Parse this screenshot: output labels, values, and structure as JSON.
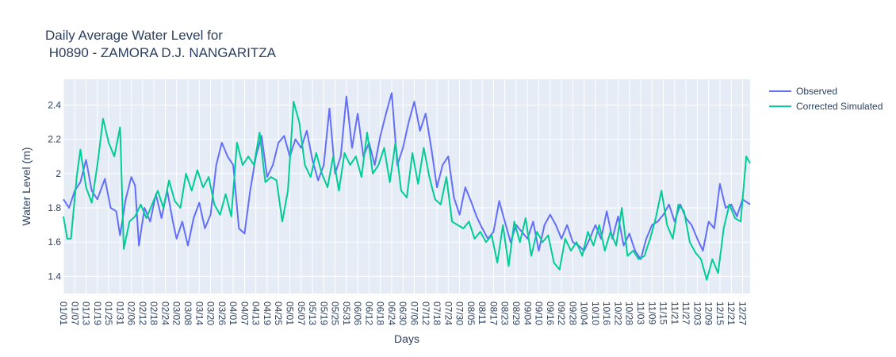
{
  "chart_data": {
    "type": "line",
    "title_line1": "Daily Average Water Level for",
    "title_line2": " H0890 - ZAMORA D.J. NANGARITZA",
    "xlabel": "Days",
    "ylabel": "Water Level (m)",
    "ylim": [
      1.3,
      2.55
    ],
    "yticks": [
      "1.4",
      "1.6",
      "1.8",
      "2",
      "2.2",
      "2.4"
    ],
    "x_start": "01/01",
    "x_end": "12/31",
    "xticks": [
      "01/01",
      "01/07",
      "01/13",
      "01/19",
      "01/25",
      "01/31",
      "02/06",
      "02/12",
      "02/18",
      "02/24",
      "03/02",
      "03/08",
      "03/14",
      "03/20",
      "03/26",
      "04/01",
      "04/07",
      "04/13",
      "04/19",
      "04/25",
      "05/01",
      "05/07",
      "05/13",
      "05/19",
      "05/25",
      "05/31",
      "06/06",
      "06/12",
      "06/18",
      "06/24",
      "06/30",
      "07/06",
      "07/12",
      "07/18",
      "07/24",
      "07/30",
      "08/05",
      "08/11",
      "08/17",
      "08/23",
      "08/29",
      "09/04",
      "09/10",
      "09/16",
      "09/22",
      "09/28",
      "10/04",
      "10/10",
      "10/16",
      "10/22",
      "10/28",
      "11/03",
      "11/09",
      "11/15",
      "11/21",
      "11/27",
      "12/03",
      "12/09",
      "12/15",
      "12/21",
      "12/27"
    ],
    "grid": true,
    "legend_position": "right",
    "series": [
      {
        "name": "Observed",
        "color": "#636efa",
        "points": [
          [
            "01/01",
            1.85
          ],
          [
            "01/04",
            1.8
          ],
          [
            "01/07",
            1.9
          ],
          [
            "01/10",
            1.95
          ],
          [
            "01/13",
            2.08
          ],
          [
            "01/16",
            1.9
          ],
          [
            "01/19",
            1.85
          ],
          [
            "01/23",
            1.97
          ],
          [
            "01/26",
            1.8
          ],
          [
            "01/29",
            1.78
          ],
          [
            "01/31",
            1.64
          ],
          [
            "02/03",
            1.85
          ],
          [
            "02/06",
            1.98
          ],
          [
            "02/08",
            1.93
          ],
          [
            "02/10",
            1.58
          ],
          [
            "02/13",
            1.8
          ],
          [
            "02/16",
            1.72
          ],
          [
            "02/19",
            1.88
          ],
          [
            "02/22",
            1.74
          ],
          [
            "02/25",
            1.9
          ],
          [
            "02/28",
            1.72
          ],
          [
            "03/02",
            1.62
          ],
          [
            "03/05",
            1.72
          ],
          [
            "03/08",
            1.58
          ],
          [
            "03/11",
            1.74
          ],
          [
            "03/14",
            1.83
          ],
          [
            "03/17",
            1.68
          ],
          [
            "03/20",
            1.76
          ],
          [
            "03/23",
            2.05
          ],
          [
            "03/26",
            2.18
          ],
          [
            "03/29",
            2.1
          ],
          [
            "04/01",
            2.05
          ],
          [
            "04/04",
            1.68
          ],
          [
            "04/07",
            1.65
          ],
          [
            "04/10",
            1.9
          ],
          [
            "04/13",
            2.1
          ],
          [
            "04/16",
            2.22
          ],
          [
            "04/19",
            1.98
          ],
          [
            "04/22",
            2.05
          ],
          [
            "04/25",
            2.18
          ],
          [
            "04/28",
            2.22
          ],
          [
            "05/01",
            2.1
          ],
          [
            "05/04",
            2.2
          ],
          [
            "05/07",
            2.15
          ],
          [
            "05/10",
            2.25
          ],
          [
            "05/13",
            2.08
          ],
          [
            "05/16",
            1.96
          ],
          [
            "05/19",
            2.05
          ],
          [
            "05/22",
            2.38
          ],
          [
            "05/25",
            2.0
          ],
          [
            "05/28",
            2.1
          ],
          [
            "05/31",
            2.45
          ],
          [
            "06/03",
            2.15
          ],
          [
            "06/06",
            2.35
          ],
          [
            "06/09",
            2.1
          ],
          [
            "06/12",
            2.18
          ],
          [
            "06/15",
            2.05
          ],
          [
            "06/18",
            2.22
          ],
          [
            "06/21",
            2.35
          ],
          [
            "06/24",
            2.47
          ],
          [
            "06/27",
            2.05
          ],
          [
            "06/30",
            2.15
          ],
          [
            "07/03",
            2.3
          ],
          [
            "07/06",
            2.42
          ],
          [
            "07/09",
            2.25
          ],
          [
            "07/12",
            2.35
          ],
          [
            "07/15",
            2.15
          ],
          [
            "07/18",
            1.92
          ],
          [
            "07/21",
            2.05
          ],
          [
            "07/24",
            2.1
          ],
          [
            "07/27",
            1.86
          ],
          [
            "07/30",
            1.76
          ],
          [
            "08/02",
            1.92
          ],
          [
            "08/05",
            1.84
          ],
          [
            "08/08",
            1.75
          ],
          [
            "08/11",
            1.68
          ],
          [
            "08/14",
            1.62
          ],
          [
            "08/17",
            1.66
          ],
          [
            "08/20",
            1.84
          ],
          [
            "08/23",
            1.72
          ],
          [
            "08/26",
            1.6
          ],
          [
            "08/29",
            1.7
          ],
          [
            "09/01",
            1.66
          ],
          [
            "09/04",
            1.62
          ],
          [
            "09/07",
            1.72
          ],
          [
            "09/10",
            1.55
          ],
          [
            "09/13",
            1.7
          ],
          [
            "09/16",
            1.76
          ],
          [
            "09/19",
            1.7
          ],
          [
            "09/22",
            1.62
          ],
          [
            "09/25",
            1.7
          ],
          [
            "09/28",
            1.6
          ],
          [
            "10/01",
            1.58
          ],
          [
            "10/04",
            1.55
          ],
          [
            "10/07",
            1.62
          ],
          [
            "10/10",
            1.7
          ],
          [
            "10/13",
            1.62
          ],
          [
            "10/16",
            1.78
          ],
          [
            "10/19",
            1.62
          ],
          [
            "10/22",
            1.75
          ],
          [
            "10/25",
            1.58
          ],
          [
            "10/28",
            1.65
          ],
          [
            "10/31",
            1.55
          ],
          [
            "11/03",
            1.5
          ],
          [
            "11/06",
            1.62
          ],
          [
            "11/09",
            1.7
          ],
          [
            "11/12",
            1.72
          ],
          [
            "11/15",
            1.76
          ],
          [
            "11/18",
            1.82
          ],
          [
            "11/21",
            1.72
          ],
          [
            "11/24",
            1.82
          ],
          [
            "11/27",
            1.74
          ],
          [
            "11/30",
            1.7
          ],
          [
            "12/03",
            1.62
          ],
          [
            "12/06",
            1.55
          ],
          [
            "12/09",
            1.72
          ],
          [
            "12/12",
            1.68
          ],
          [
            "12/15",
            1.94
          ],
          [
            "12/18",
            1.8
          ],
          [
            "12/21",
            1.82
          ],
          [
            "12/24",
            1.75
          ],
          [
            "12/27",
            1.85
          ],
          [
            "12/31",
            1.82
          ]
        ]
      },
      {
        "name": "Corrected Simulated",
        "color": "#00cc96",
        "points": [
          [
            "01/01",
            1.75
          ],
          [
            "01/03",
            1.62
          ],
          [
            "01/05",
            1.62
          ],
          [
            "01/08",
            1.98
          ],
          [
            "01/10",
            2.14
          ],
          [
            "01/13",
            1.92
          ],
          [
            "01/16",
            1.83
          ],
          [
            "01/19",
            2.05
          ],
          [
            "01/22",
            2.32
          ],
          [
            "01/25",
            2.18
          ],
          [
            "01/28",
            2.1
          ],
          [
            "01/31",
            2.27
          ],
          [
            "02/02",
            1.56
          ],
          [
            "02/05",
            1.72
          ],
          [
            "02/08",
            1.75
          ],
          [
            "02/11",
            1.82
          ],
          [
            "02/14",
            1.74
          ],
          [
            "02/17",
            1.82
          ],
          [
            "02/20",
            1.9
          ],
          [
            "02/23",
            1.8
          ],
          [
            "02/26",
            1.96
          ],
          [
            "03/01",
            1.84
          ],
          [
            "03/04",
            1.8
          ],
          [
            "03/07",
            2.0
          ],
          [
            "03/10",
            1.9
          ],
          [
            "03/13",
            2.02
          ],
          [
            "03/16",
            1.92
          ],
          [
            "03/19",
            1.98
          ],
          [
            "03/22",
            1.82
          ],
          [
            "03/25",
            1.76
          ],
          [
            "03/28",
            1.88
          ],
          [
            "03/31",
            1.75
          ],
          [
            "04/03",
            2.18
          ],
          [
            "04/06",
            2.05
          ],
          [
            "04/09",
            2.1
          ],
          [
            "04/12",
            2.05
          ],
          [
            "04/15",
            2.24
          ],
          [
            "04/18",
            1.95
          ],
          [
            "04/21",
            1.98
          ],
          [
            "04/24",
            1.96
          ],
          [
            "04/27",
            1.72
          ],
          [
            "04/30",
            1.9
          ],
          [
            "05/03",
            2.42
          ],
          [
            "05/06",
            2.3
          ],
          [
            "05/09",
            2.05
          ],
          [
            "05/12",
            1.98
          ],
          [
            "05/15",
            2.12
          ],
          [
            "05/18",
            2.0
          ],
          [
            "05/21",
            1.92
          ],
          [
            "05/24",
            2.1
          ],
          [
            "05/27",
            1.9
          ],
          [
            "05/30",
            2.12
          ],
          [
            "06/02",
            2.05
          ],
          [
            "06/05",
            2.1
          ],
          [
            "06/08",
            1.98
          ],
          [
            "06/11",
            2.24
          ],
          [
            "06/14",
            2.0
          ],
          [
            "06/17",
            2.05
          ],
          [
            "06/20",
            2.15
          ],
          [
            "06/23",
            1.95
          ],
          [
            "06/26",
            2.18
          ],
          [
            "06/29",
            1.9
          ],
          [
            "07/02",
            1.86
          ],
          [
            "07/05",
            2.12
          ],
          [
            "07/08",
            1.94
          ],
          [
            "07/11",
            2.15
          ],
          [
            "07/14",
            1.98
          ],
          [
            "07/17",
            1.85
          ],
          [
            "07/20",
            1.82
          ],
          [
            "07/23",
            1.98
          ],
          [
            "07/26",
            1.72
          ],
          [
            "07/29",
            1.7
          ],
          [
            "08/01",
            1.68
          ],
          [
            "08/04",
            1.72
          ],
          [
            "08/07",
            1.62
          ],
          [
            "08/10",
            1.66
          ],
          [
            "08/13",
            1.6
          ],
          [
            "08/16",
            1.64
          ],
          [
            "08/19",
            1.48
          ],
          [
            "08/22",
            1.7
          ],
          [
            "08/25",
            1.46
          ],
          [
            "08/28",
            1.72
          ],
          [
            "08/31",
            1.6
          ],
          [
            "09/03",
            1.74
          ],
          [
            "09/06",
            1.52
          ],
          [
            "09/09",
            1.66
          ],
          [
            "09/12",
            1.6
          ],
          [
            "09/15",
            1.64
          ],
          [
            "09/18",
            1.48
          ],
          [
            "09/21",
            1.44
          ],
          [
            "09/24",
            1.62
          ],
          [
            "09/27",
            1.55
          ],
          [
            "09/30",
            1.6
          ],
          [
            "10/03",
            1.52
          ],
          [
            "10/06",
            1.66
          ],
          [
            "10/09",
            1.58
          ],
          [
            "10/12",
            1.7
          ],
          [
            "10/15",
            1.55
          ],
          [
            "10/18",
            1.66
          ],
          [
            "10/21",
            1.58
          ],
          [
            "10/24",
            1.8
          ],
          [
            "10/27",
            1.52
          ],
          [
            "10/30",
            1.55
          ],
          [
            "11/02",
            1.5
          ],
          [
            "11/05",
            1.52
          ],
          [
            "11/08",
            1.62
          ],
          [
            "11/11",
            1.74
          ],
          [
            "11/14",
            1.9
          ],
          [
            "11/17",
            1.7
          ],
          [
            "11/20",
            1.62
          ],
          [
            "11/23",
            1.82
          ],
          [
            "11/26",
            1.78
          ],
          [
            "11/29",
            1.6
          ],
          [
            "12/02",
            1.54
          ],
          [
            "12/05",
            1.5
          ],
          [
            "12/08",
            1.38
          ],
          [
            "12/11",
            1.5
          ],
          [
            "12/14",
            1.42
          ],
          [
            "12/17",
            1.68
          ],
          [
            "12/20",
            1.82
          ],
          [
            "12/23",
            1.74
          ],
          [
            "12/26",
            1.72
          ],
          [
            "12/29",
            2.1
          ],
          [
            "12/31",
            2.06
          ]
        ]
      }
    ]
  }
}
